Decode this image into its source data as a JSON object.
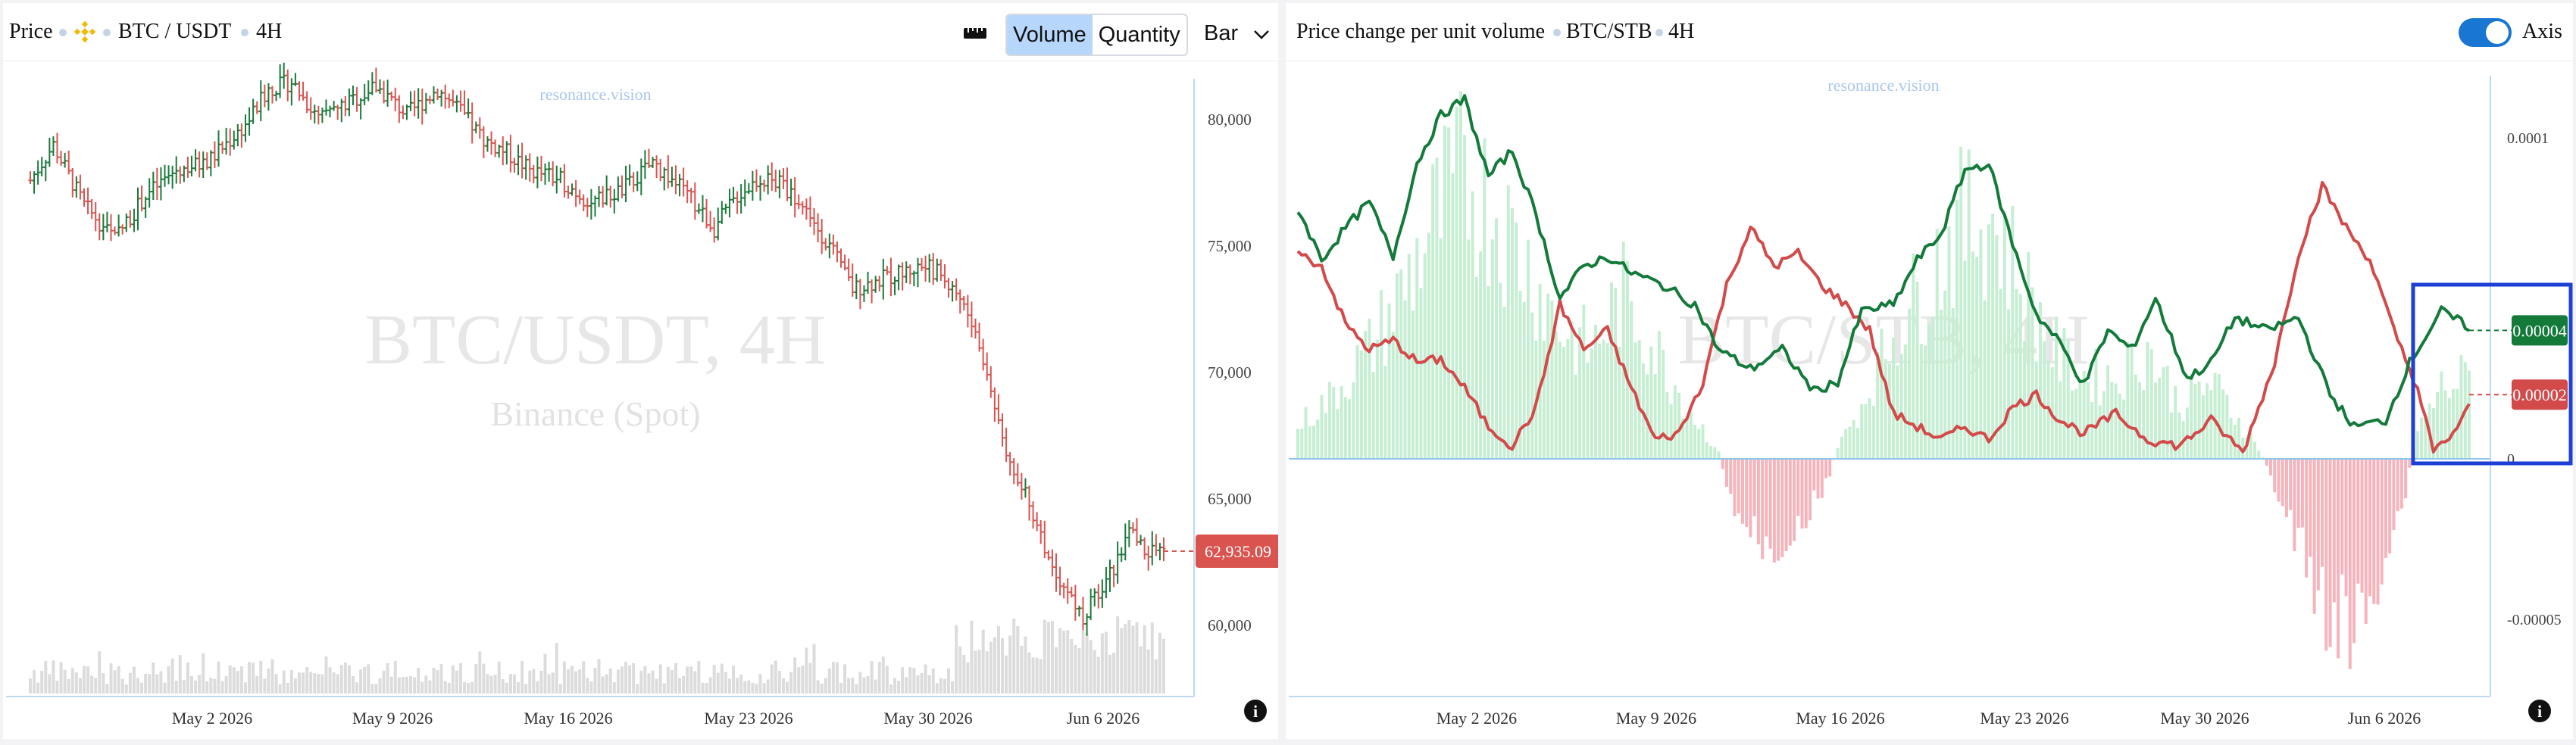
{
  "left": {
    "header": {
      "price_label": "Price",
      "pair": "BTC / USDT",
      "timeframe": "4H"
    },
    "toolbar": {
      "volume_label": "Volume",
      "quantity_label": "Quantity",
      "chart_type": "Bar"
    },
    "watermark": {
      "site": "resonance.vision",
      "title": "BTC/USDT, 4H",
      "subtitle": "Binance (Spot)"
    },
    "price_badge": "62,935.09",
    "info_glyph": "i"
  },
  "right": {
    "header": {
      "title": "Price change per unit volume",
      "pair": "BTC/STB",
      "timeframe": "4H",
      "axis_label": "Axis"
    },
    "watermark": {
      "site": "resonance.vision",
      "title": "BTC/STB, 4H"
    },
    "green_badge": "0.00004",
    "red_badge": "0.00002",
    "info_glyph": "i"
  },
  "chart_data": [
    {
      "type": "candlestick",
      "title": "BTC/USDT, 4H",
      "subtitle": "Binance (Spot)",
      "x_labels": [
        "May 2 2026",
        "May 9 2026",
        "May 16 2026",
        "May 23 2026",
        "May 30 2026",
        "Jun 6 2026"
      ],
      "y_ticks": [
        60000,
        65000,
        70000,
        75000,
        80000
      ],
      "y_tick_labels": [
        "60,000",
        "65,000",
        "70,000",
        "75,000",
        "80,000"
      ],
      "ylim": [
        58600,
        83600
      ],
      "last_price": 62935.09,
      "close_anchors": [
        [
          0,
          77600
        ],
        [
          6,
          79000
        ],
        [
          14,
          76600
        ],
        [
          22,
          75300
        ],
        [
          30,
          77000
        ],
        [
          38,
          78000
        ],
        [
          46,
          78300
        ],
        [
          56,
          79800
        ],
        [
          62,
          81200
        ],
        [
          68,
          81500
        ],
        [
          75,
          80000
        ],
        [
          82,
          80600
        ],
        [
          90,
          81300
        ],
        [
          98,
          80200
        ],
        [
          106,
          81200
        ],
        [
          112,
          80300
        ],
        [
          118,
          79200
        ],
        [
          124,
          78700
        ],
        [
          130,
          78000
        ],
        [
          138,
          77600
        ],
        [
          146,
          76700
        ],
        [
          154,
          77200
        ],
        [
          162,
          78300
        ],
        [
          170,
          77200
        ],
        [
          178,
          75700
        ],
        [
          184,
          77000
        ],
        [
          190,
          77700
        ],
        [
          196,
          77400
        ],
        [
          202,
          76400
        ],
        [
          208,
          75000
        ],
        [
          214,
          73300
        ],
        [
          220,
          73600
        ],
        [
          226,
          73900
        ],
        [
          232,
          74200
        ],
        [
          236,
          74000
        ],
        [
          242,
          73000
        ],
        [
          246,
          71500
        ],
        [
          250,
          69300
        ],
        [
          254,
          67000
        ],
        [
          258,
          65600
        ],
        [
          262,
          64000
        ],
        [
          266,
          62400
        ],
        [
          270,
          61300
        ],
        [
          274,
          60200
        ],
        [
          278,
          61400
        ],
        [
          282,
          62300
        ],
        [
          286,
          63700
        ],
        [
          290,
          63000
        ],
        [
          295,
          62935
        ]
      ],
      "volume_color": "#dcdcdc",
      "up_color": "#1b7a3c",
      "down_color": "#d9534f"
    },
    {
      "type": "line+histogram",
      "title": "BTC/STB, 4H",
      "series": [
        {
          "name": "",
          "color": "#137a3a",
          "last": 4e-05
        },
        {
          "name": "",
          "color": "#d24a4a",
          "last": 2e-05
        }
      ],
      "x_labels": [
        "May 2 2026",
        "May 9 2026",
        "May 16 2026",
        "May 23 2026",
        "May 30 2026",
        "Jun 6 2026"
      ],
      "y_ticks": [
        0.0001,
        0,
        -5e-05
      ],
      "y_tick_labels": [
        "0.0001",
        "0",
        "-0.00005"
      ],
      "ylim": [
        -7.2e-05,
        0.000118
      ],
      "green_anchors": [
        [
          0,
          7.8e-05
        ],
        [
          6,
          6.2e-05
        ],
        [
          12,
          7.2e-05
        ],
        [
          18,
          8e-05
        ],
        [
          24,
          6.3e-05
        ],
        [
          30,
          9.2e-05
        ],
        [
          36,
          0.000107
        ],
        [
          42,
          0.000112
        ],
        [
          48,
          8.8e-05
        ],
        [
          54,
          9.6e-05
        ],
        [
          60,
          7.6e-05
        ],
        [
          66,
          5e-05
        ],
        [
          72,
          6e-05
        ],
        [
          78,
          6.3e-05
        ],
        [
          84,
          5.8e-05
        ],
        [
          92,
          5.4e-05
        ],
        [
          100,
          4.8e-05
        ],
        [
          106,
          3.4e-05
        ],
        [
          114,
          2.8e-05
        ],
        [
          122,
          3.4e-05
        ],
        [
          130,
          2.1e-05
        ],
        [
          136,
          2.4e-05
        ],
        [
          142,
          4.6e-05
        ],
        [
          150,
          4.8e-05
        ],
        [
          156,
          6.2e-05
        ],
        [
          162,
          7e-05
        ],
        [
          168,
          9e-05
        ],
        [
          174,
          9.2e-05
        ],
        [
          180,
          6.7e-05
        ],
        [
          186,
          4.5e-05
        ],
        [
          192,
          3.6e-05
        ],
        [
          198,
          2.3e-05
        ],
        [
          204,
          4e-05
        ],
        [
          210,
          3.4e-05
        ],
        [
          216,
          5e-05
        ],
        [
          224,
          2.5e-05
        ],
        [
          230,
          3e-05
        ],
        [
          236,
          4.4e-05
        ],
        [
          244,
          4e-05
        ],
        [
          252,
          4.4e-05
        ],
        [
          260,
          2e-05
        ],
        [
          266,
          1e-05
        ],
        [
          274,
          1.2e-05
        ],
        [
          280,
          3e-05
        ],
        [
          288,
          4.6e-05
        ],
        [
          295,
          4.1e-05
        ]
      ],
      "red_anchors": [
        [
          0,
          6.4e-05
        ],
        [
          6,
          6e-05
        ],
        [
          12,
          4.2e-05
        ],
        [
          18,
          3.4e-05
        ],
        [
          24,
          3.7e-05
        ],
        [
          30,
          3e-05
        ],
        [
          36,
          3.1e-05
        ],
        [
          42,
          2.2e-05
        ],
        [
          48,
          1e-05
        ],
        [
          54,
          4e-06
        ],
        [
          60,
          1.6e-05
        ],
        [
          66,
          4.8e-05
        ],
        [
          72,
          3.4e-05
        ],
        [
          78,
          4e-05
        ],
        [
          84,
          2.2e-05
        ],
        [
          90,
          6e-06
        ],
        [
          96,
          8e-06
        ],
        [
          102,
          2.4e-05
        ],
        [
          108,
          5.4e-05
        ],
        [
          114,
          7.2e-05
        ],
        [
          120,
          6e-05
        ],
        [
          126,
          6.4e-05
        ],
        [
          132,
          5.4e-05
        ],
        [
          138,
          4.8e-05
        ],
        [
          144,
          4e-05
        ],
        [
          150,
          1.4e-05
        ],
        [
          156,
          1e-05
        ],
        [
          162,
          6e-06
        ],
        [
          168,
          1e-05
        ],
        [
          174,
          6e-06
        ],
        [
          180,
          1.6e-05
        ],
        [
          186,
          2e-05
        ],
        [
          192,
          1.2e-05
        ],
        [
          198,
          8e-06
        ],
        [
          206,
          1.4e-05
        ],
        [
          214,
          6e-06
        ],
        [
          222,
          4e-06
        ],
        [
          230,
          1.2e-05
        ],
        [
          238,
          2e-06
        ],
        [
          246,
          3e-05
        ],
        [
          252,
          6.4e-05
        ],
        [
          258,
          8.5e-05
        ],
        [
          264,
          7.2e-05
        ],
        [
          270,
          6.2e-05
        ],
        [
          276,
          4e-05
        ],
        [
          282,
          2.2e-05
        ],
        [
          286,
          2e-06
        ],
        [
          291,
          8e-06
        ],
        [
          295,
          1.6e-05
        ]
      ],
      "histogram_colors": {
        "positive": "#c6eed3",
        "negative": "#f5b4bc"
      },
      "histogram_anchors": [
        [
          0,
          1.2e-05
        ],
        [
          8,
          2.2e-05
        ],
        [
          18,
          4e-05
        ],
        [
          26,
          6e-05
        ],
        [
          34,
          8.6e-05
        ],
        [
          42,
          0.000104
        ],
        [
          50,
          9e-05
        ],
        [
          58,
          7e-05
        ],
        [
          66,
          4.8e-05
        ],
        [
          74,
          4e-05
        ],
        [
          82,
          6e-05
        ],
        [
          90,
          4e-05
        ],
        [
          98,
          2e-05
        ],
        [
          106,
          2e-06
        ],
        [
          108,
          -1.2e-05
        ],
        [
          114,
          -2.8e-05
        ],
        [
          120,
          -3.2e-05
        ],
        [
          126,
          -2.4e-05
        ],
        [
          132,
          -1.4e-05
        ],
        [
          136,
          4e-06
        ],
        [
          142,
          2e-05
        ],
        [
          150,
          4.6e-05
        ],
        [
          158,
          6.4e-05
        ],
        [
          166,
          8.4e-05
        ],
        [
          174,
          9e-05
        ],
        [
          182,
          6.6e-05
        ],
        [
          190,
          4e-05
        ],
        [
          198,
          3e-05
        ],
        [
          206,
          3e-05
        ],
        [
          214,
          4e-05
        ],
        [
          222,
          2e-05
        ],
        [
          230,
          2.8e-05
        ],
        [
          236,
          1.6e-05
        ],
        [
          242,
          4e-06
        ],
        [
          246,
          -1e-05
        ],
        [
          254,
          -4e-05
        ],
        [
          262,
          -6e-05
        ],
        [
          266,
          -6.6e-05
        ],
        [
          272,
          -4e-05
        ],
        [
          278,
          -1.8e-05
        ],
        [
          282,
          1e-05
        ],
        [
          288,
          2.6e-05
        ],
        [
          295,
          3e-05
        ]
      ]
    }
  ]
}
